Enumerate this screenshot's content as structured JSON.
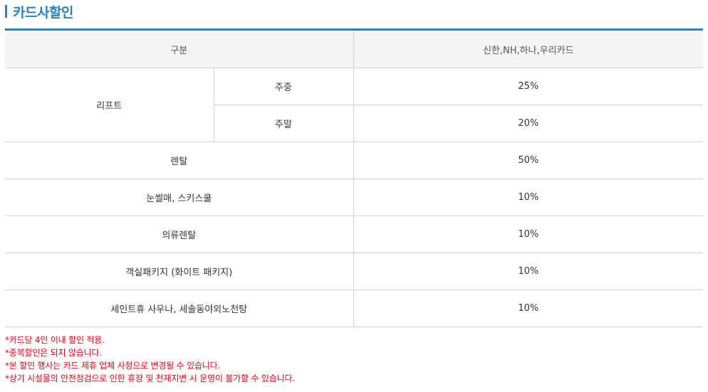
{
  "section": {
    "title": "카드사할인"
  },
  "table": {
    "header": {
      "category": "구분",
      "cards": "신한,NH,하나,우리카드"
    },
    "lift": {
      "label": "리프트",
      "weekday_label": "주중",
      "weekday_value": "25%",
      "weekend_label": "주말",
      "weekend_value": "20%"
    },
    "rows": [
      {
        "label": "렌탈",
        "value": "50%"
      },
      {
        "label": "눈썰매, 스키스쿨",
        "value": "10%"
      },
      {
        "label": "의류렌탈",
        "value": "10%"
      },
      {
        "label": "객실패키지 (화이트 패키지)",
        "value": "10%"
      },
      {
        "label": "세인트휴 사우나, 세솔동야외노천탕",
        "value": "10%"
      }
    ]
  },
  "notes": [
    "*카드당 4인 이내 할인 적용.",
    "*중복할인은 되지 않습니다.",
    "*본 할인 행사는 카드 제휴 업체 사정으로 변경될 수 있습니다.",
    "*상기 시설물의 안전점검으로 인한 휴장 및 천재지변 시 운영이 불가할 수 있습니다."
  ],
  "colors": {
    "accent": "#2a7fc0",
    "notice": "#e60012",
    "header_bg": "#f4f4f4"
  }
}
